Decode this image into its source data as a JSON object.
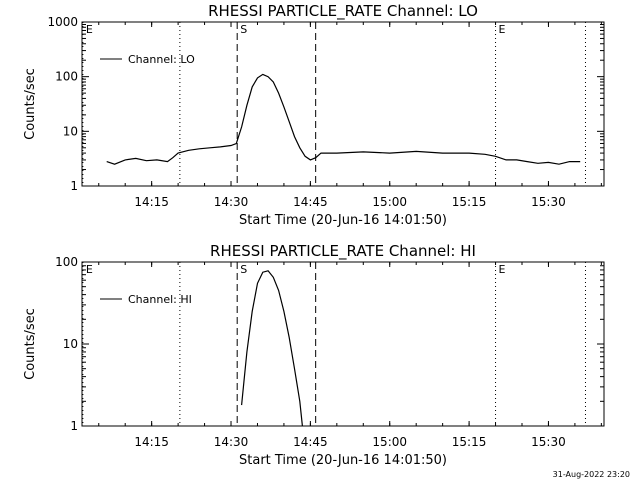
{
  "chart_data": [
    {
      "type": "line",
      "title": "RHESSI PARTICLE_RATE Channel: LO",
      "xlabel": "Start Time (20-Jun-16 14:01:50)",
      "ylabel": "Counts/sec",
      "y_scale": "log",
      "ylim": [
        1,
        1000
      ],
      "xlim": [
        "14:01:50",
        "15:40:30"
      ],
      "x_tick_labels": [
        "14:15",
        "14:30",
        "14:45",
        "15:00",
        "15:15",
        "15:30"
      ],
      "y_tick_labels": [
        "1",
        "10",
        "100",
        "1000"
      ],
      "legend": {
        "position": "top-left",
        "entries": [
          "Channel: LO"
        ]
      },
      "markers": [
        {
          "label": "E",
          "time": "14:02:00",
          "style": "dotted"
        },
        {
          "label": "",
          "time": "14:20:20",
          "style": "dotted"
        },
        {
          "label": "S",
          "time": "14:31:10",
          "style": "dashed"
        },
        {
          "label": "",
          "time": "14:46:00",
          "style": "dashed"
        },
        {
          "label": "E",
          "time": "15:20:00",
          "style": "dotted"
        },
        {
          "label": "",
          "time": "15:37:00",
          "style": "dotted"
        }
      ],
      "series": [
        {
          "name": "Channel: LO",
          "x": [
            "14:06:30",
            "14:08:00",
            "14:10:00",
            "14:12:00",
            "14:14:00",
            "14:16:00",
            "14:18:00",
            "14:19:00",
            "14:20:00",
            "14:22:00",
            "14:24:00",
            "14:26:00",
            "14:28:00",
            "14:30:00",
            "14:31:00",
            "14:32:00",
            "14:33:00",
            "14:34:00",
            "14:35:00",
            "14:36:00",
            "14:37:00",
            "14:38:00",
            "14:39:00",
            "14:40:00",
            "14:41:00",
            "14:42:00",
            "14:43:00",
            "14:44:00",
            "14:45:00",
            "14:46:00",
            "14:47:00",
            "14:50:00",
            "14:55:00",
            "15:00:00",
            "15:05:00",
            "15:10:00",
            "15:15:00",
            "15:18:00",
            "15:20:00",
            "15:22:00",
            "15:24:00",
            "15:26:00",
            "15:28:00",
            "15:30:00",
            "15:32:00",
            "15:34:00",
            "15:36:00"
          ],
          "y": [
            2.8,
            2.5,
            3,
            3.2,
            2.9,
            3,
            2.8,
            3.3,
            4,
            4.5,
            4.8,
            5,
            5.2,
            5.5,
            6,
            12,
            30,
            65,
            95,
            110,
            100,
            80,
            50,
            28,
            15,
            8,
            5,
            3.5,
            3,
            3.3,
            4,
            4,
            4.2,
            4,
            4.3,
            4,
            4,
            3.8,
            3.5,
            3,
            3,
            2.8,
            2.6,
            2.7,
            2.5,
            2.8,
            2.8
          ]
        }
      ]
    },
    {
      "type": "line",
      "title": "RHESSI PARTICLE_RATE Channel: HI",
      "xlabel": "Start Time (20-Jun-16 14:01:50)",
      "ylabel": "Counts/sec",
      "y_scale": "log",
      "ylim": [
        1,
        100
      ],
      "xlim": [
        "14:01:50",
        "15:40:30"
      ],
      "x_tick_labels": [
        "14:15",
        "14:30",
        "14:45",
        "15:00",
        "15:15",
        "15:30"
      ],
      "y_tick_labels": [
        "1",
        "10",
        "100"
      ],
      "legend": {
        "position": "top-left",
        "entries": [
          "Channel: HI"
        ]
      },
      "markers": [
        {
          "label": "E",
          "time": "14:02:00",
          "style": "dotted"
        },
        {
          "label": "",
          "time": "14:20:20",
          "style": "dotted"
        },
        {
          "label": "S",
          "time": "14:31:10",
          "style": "dashed"
        },
        {
          "label": "",
          "time": "14:46:00",
          "style": "dashed"
        },
        {
          "label": "E",
          "time": "15:20:00",
          "style": "dotted"
        },
        {
          "label": "",
          "time": "15:37:00",
          "style": "dotted"
        }
      ],
      "series": [
        {
          "name": "Channel: HI",
          "x": [
            "14:32:00",
            "14:32:20",
            "14:33:00",
            "14:34:00",
            "14:35:00",
            "14:36:00",
            "14:37:00",
            "14:38:00",
            "14:39:00",
            "14:40:00",
            "14:41:00",
            "14:42:00",
            "14:43:00",
            "14:43:30"
          ],
          "y": [
            1.8,
            3,
            8,
            25,
            55,
            75,
            78,
            65,
            45,
            25,
            12,
            5,
            2,
            1
          ]
        }
      ]
    }
  ],
  "timestamp": "31-Aug-2022 23:20"
}
